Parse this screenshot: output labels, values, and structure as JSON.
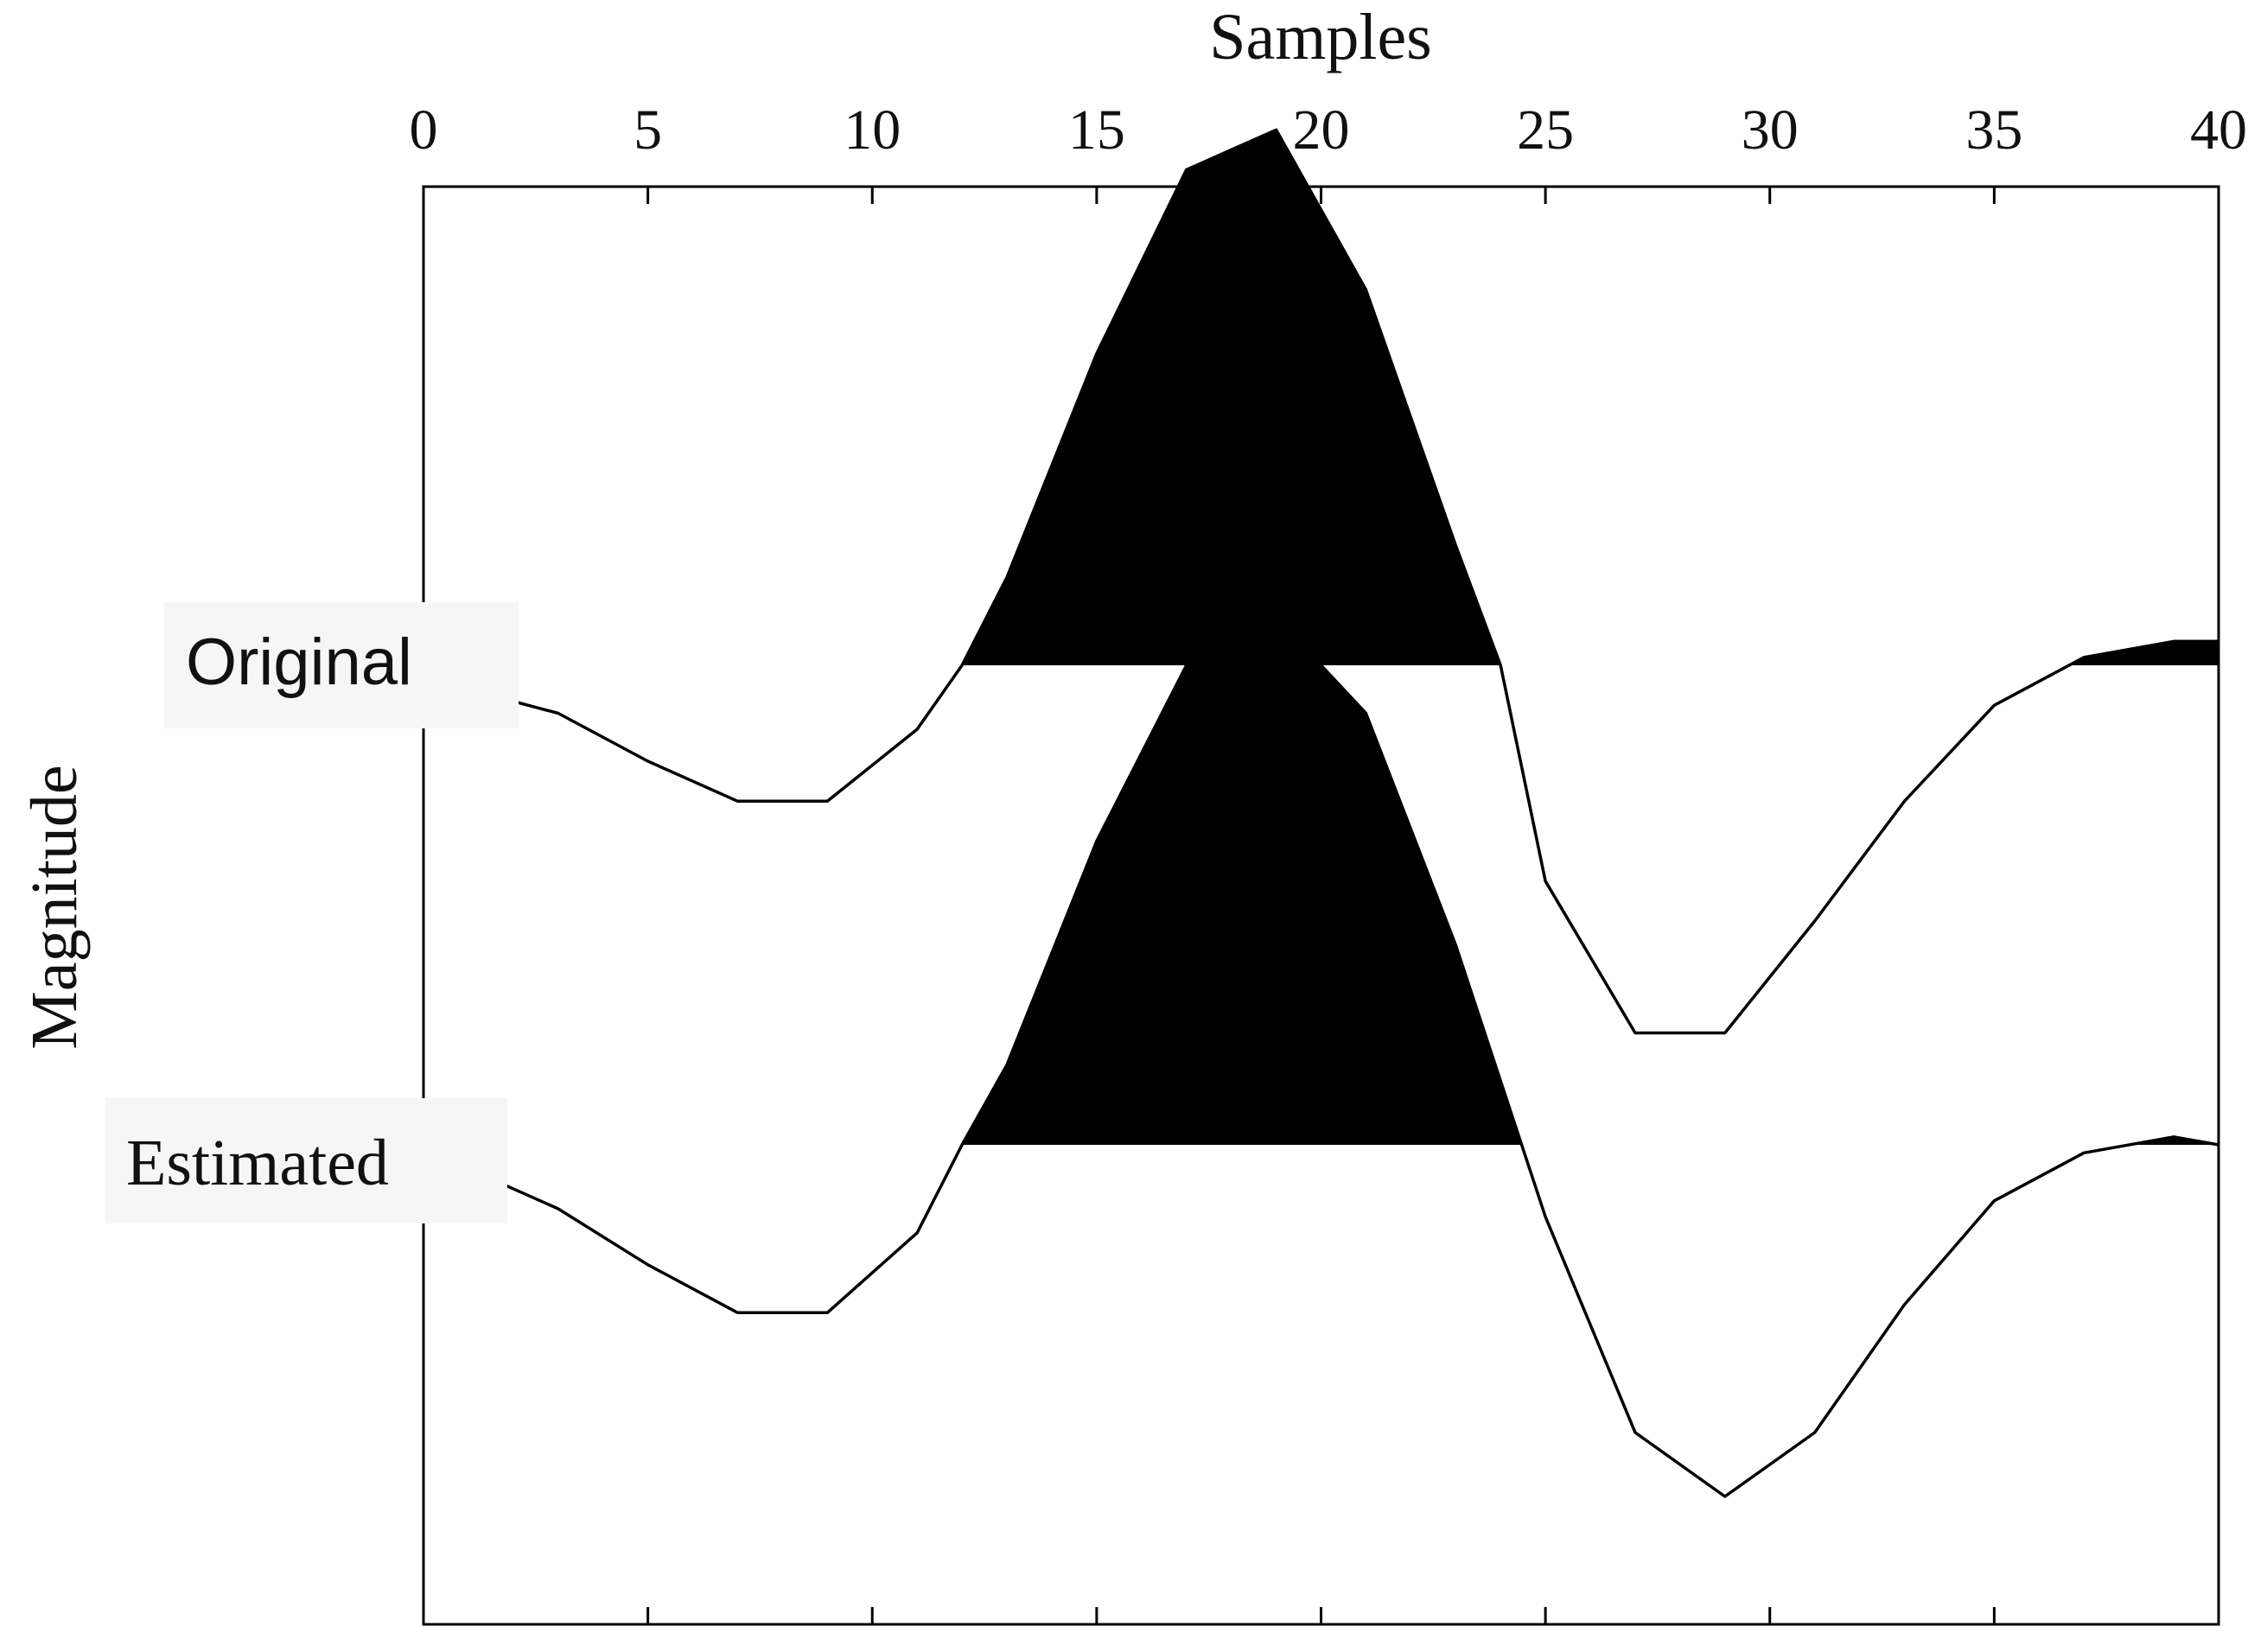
{
  "chart_data": {
    "type": "line",
    "title": "",
    "xlabel": "Samples",
    "ylabel": "Magnitude",
    "x_axis_position": "top",
    "xlim": [
      0,
      40
    ],
    "xticks": [
      0,
      5,
      10,
      15,
      20,
      25,
      30,
      35,
      40
    ],
    "y_ticks_shown": false,
    "grid": false,
    "style": "wiggle traces with positive lobes filled black",
    "x": [
      0,
      1,
      3,
      5,
      7,
      9,
      11,
      12,
      13,
      15,
      17,
      19,
      21,
      23,
      24,
      25,
      27,
      29,
      31,
      33,
      35,
      37,
      39,
      40
    ],
    "series": [
      {
        "name": "Original",
        "baseline_offset": 0.6,
        "values": [
          -0.02,
          -0.03,
          -0.06,
          -0.12,
          -0.17,
          -0.17,
          -0.08,
          0.0,
          0.11,
          0.39,
          0.62,
          0.67,
          0.47,
          0.15,
          0.0,
          -0.27,
          -0.46,
          -0.46,
          -0.32,
          -0.17,
          -0.05,
          0.01,
          0.03,
          0.03
        ]
      },
      {
        "name": "Estimated",
        "baseline_offset": 0.0,
        "values": [
          -0.02,
          -0.03,
          -0.08,
          -0.15,
          -0.21,
          -0.21,
          -0.11,
          0.0,
          0.1,
          0.38,
          0.6,
          0.66,
          0.54,
          0.25,
          0.08,
          -0.09,
          -0.36,
          -0.44,
          -0.36,
          -0.2,
          -0.07,
          -0.01,
          0.01,
          0.0
        ]
      }
    ],
    "annotations": [
      {
        "text": "Original",
        "attached_to": "Original"
      },
      {
        "text": "Estimated",
        "attached_to": "Estimated"
      }
    ],
    "colors": {
      "line": "#000000",
      "fill": "#000000",
      "label_box": "#f6f6f6"
    }
  }
}
